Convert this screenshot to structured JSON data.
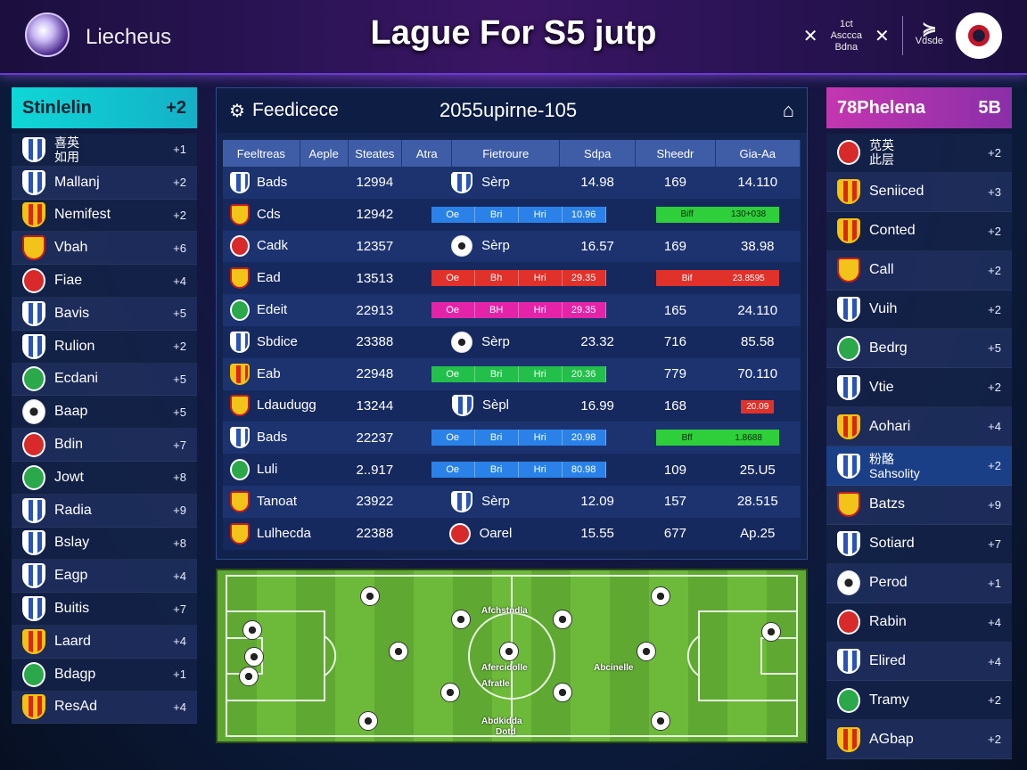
{
  "header": {
    "logo_text": "Liecheus",
    "title": "Lague For S5 jutp",
    "right_mini_lines": [
      "1ct",
      "Asccca",
      "Bdna"
    ],
    "right_brand": "Vdsde",
    "x_symbol": "✕"
  },
  "left_panel": {
    "title": "Stinlelin",
    "title_value": "+2",
    "rows": [
      {
        "name": "喜英\n如用",
        "value": "+1",
        "crest": "blue"
      },
      {
        "name": "Mallanj",
        "value": "+2",
        "crest": "blue"
      },
      {
        "name": "Nemifest",
        "value": "+2",
        "crest": "yellow"
      },
      {
        "name": "Vbah",
        "value": "+6",
        "crest": "gold"
      },
      {
        "name": "Fiae",
        "value": "+4",
        "crest": "red"
      },
      {
        "name": "Bavis",
        "value": "+5",
        "crest": "blue"
      },
      {
        "name": "Rulion",
        "value": "+2",
        "crest": "blue"
      },
      {
        "name": "Ecdani",
        "value": "+5",
        "crest": "green"
      },
      {
        "name": "Baap",
        "value": "+5",
        "crest": "ball"
      },
      {
        "name": "Bdin",
        "value": "+7",
        "crest": "red"
      },
      {
        "name": "Jowt",
        "value": "+8",
        "crest": "green"
      },
      {
        "name": "Radia",
        "value": "+9",
        "crest": "blue"
      },
      {
        "name": "Bslay",
        "value": "+8",
        "crest": "blue"
      },
      {
        "name": "Eagp",
        "value": "+4",
        "crest": "blue"
      },
      {
        "name": "Buitis",
        "value": "+7",
        "crest": "blue"
      },
      {
        "name": "Laard",
        "value": "+4",
        "crest": "yellow"
      },
      {
        "name": "Bdagp",
        "value": "+1",
        "crest": "green"
      },
      {
        "name": "ResAd",
        "value": "+4",
        "crest": "yellow"
      }
    ]
  },
  "right_panel": {
    "title": "78Phelena",
    "title_value": "5B",
    "rows": [
      {
        "name": "苋英\n此层",
        "value": "+2",
        "crest": "red",
        "hl": false
      },
      {
        "name": "Seniiced",
        "value": "+3",
        "crest": "yellow",
        "hl": false
      },
      {
        "name": "Conted",
        "value": "+2",
        "crest": "yellow",
        "hl": false
      },
      {
        "name": "Call",
        "value": "+2",
        "crest": "gold",
        "hl": false
      },
      {
        "name": "Vuih",
        "value": "+2",
        "crest": "blue",
        "hl": false
      },
      {
        "name": "Bedrg",
        "value": "+5",
        "crest": "green",
        "hl": false
      },
      {
        "name": "Vtie",
        "value": "+2",
        "crest": "blue",
        "hl": false
      },
      {
        "name": "Aohari",
        "value": "+4",
        "crest": "yellow",
        "hl": false
      },
      {
        "name": "粉酪\nSahsolity",
        "value": "+2",
        "crest": "blue",
        "hl": true
      },
      {
        "name": "Batzs",
        "value": "+9",
        "crest": "gold",
        "hl": false
      },
      {
        "name": "Sotiard",
        "value": "+7",
        "crest": "blue",
        "hl": false
      },
      {
        "name": "Perod",
        "value": "+1",
        "crest": "ball",
        "hl": false
      },
      {
        "name": "Rabin",
        "value": "+4",
        "crest": "red",
        "hl": false
      },
      {
        "name": "Elired",
        "value": "+4",
        "crest": "blue",
        "hl": false
      },
      {
        "name": "Tramy",
        "value": "+2",
        "crest": "green",
        "hl": false
      },
      {
        "name": "AGbap",
        "value": "+2",
        "crest": "yellow",
        "hl": false
      }
    ]
  },
  "center": {
    "label": "Feedicece",
    "date": "2055upirne-105",
    "columns": [
      "Feeltreas",
      "Aeple",
      "Steates",
      "Atra",
      "Fietroure",
      "Sdpa",
      "Sheedr",
      "Gia-Aa"
    ],
    "rows": [
      {
        "team": "Bads",
        "crest": "blue",
        "score": "12994",
        "opp_crest": "blue",
        "opp": "Sèrp",
        "a": "14.98",
        "b": "169",
        "c": "14.110",
        "bar": null,
        "bar2": null
      },
      {
        "team": "Cds",
        "crest": "gold",
        "score": "12942",
        "bar": "blue",
        "bar_labels": [
          "Oe",
          "Bri",
          "Hri",
          "10.96"
        ],
        "bar2": "green",
        "bar2_labels": [
          "Biff",
          "130+038"
        ]
      },
      {
        "team": "Cadk",
        "crest": "red",
        "score": "12357",
        "opp_crest": "ball",
        "opp": "Sèrp",
        "a": "16.57",
        "b": "169",
        "c": "38.98",
        "bar": null,
        "bar2": null
      },
      {
        "team": "Ead",
        "crest": "gold",
        "score": "13513",
        "bar": "red",
        "bar_labels": [
          "Oe",
          "Bh",
          "Hri",
          "29.35"
        ],
        "bar2": "red",
        "bar2_labels": [
          "Bif",
          "23.8595"
        ]
      },
      {
        "team": "Edeit",
        "crest": "green",
        "score": "22913",
        "bar": "magenta",
        "bar_labels": [
          "Oe",
          "BH",
          "Hri",
          "29.35"
        ],
        "b": "165",
        "c": "24.110",
        "bar2": null
      },
      {
        "team": "Sbdice",
        "crest": "blue",
        "score": "23388",
        "opp_crest": "ball",
        "opp": "Sèrp",
        "a": "23.32",
        "b": "716",
        "c": "85.58",
        "bar": null,
        "bar2": null
      },
      {
        "team": "Eab",
        "crest": "yellow",
        "score": "22948",
        "bar": "green",
        "bar_labels": [
          "Oe",
          "Bri",
          "Hri",
          "20.36"
        ],
        "b": "779",
        "c": "70.110",
        "bar2": null
      },
      {
        "team": "Ldaudugg",
        "crest": "gold",
        "score": "13244",
        "opp_crest": "blue",
        "opp": "Sèpl",
        "a": "16.99",
        "b": "168",
        "mini": "20.09",
        "bar": null,
        "bar2": null
      },
      {
        "team": "Bads",
        "crest": "blue",
        "score": "22237",
        "bar": "blue",
        "bar_labels": [
          "Oe",
          "Bri",
          "Hri",
          "20.98"
        ],
        "bar2": "green",
        "bar2_labels": [
          "Bff",
          "1.8688"
        ]
      },
      {
        "team": "Luli",
        "crest": "green",
        "score": "2..917",
        "bar": "blue",
        "bar_labels": [
          "Oe",
          "Bri",
          "Hri",
          "80.98"
        ],
        "b": "109",
        "c": "25.U5",
        "bar2": null
      },
      {
        "team": "Tanoat",
        "crest": "gold",
        "score": "23922",
        "opp_crest": "blue",
        "opp": "Sèrp",
        "a": "12.09",
        "b": "157",
        "c": "28.515",
        "bar": null,
        "bar2": null
      },
      {
        "team": "Lulhecda",
        "crest": "gold",
        "score": "22388",
        "opp_crest": "red",
        "opp": "Oarel",
        "a": "15.55",
        "b": "677",
        "c": "Ap.25",
        "bar": null,
        "bar2": null
      }
    ]
  },
  "pitch": {
    "labels": [
      "Afchstndla",
      "Afercidolle",
      "Afratle",
      "Abcinelle",
      "Abdkidda",
      "Dotd"
    ]
  },
  "colors": {
    "accent_cyan": "#0fd7d7",
    "accent_magenta": "#c436b0",
    "accent_purple": "#6a3bd1"
  }
}
